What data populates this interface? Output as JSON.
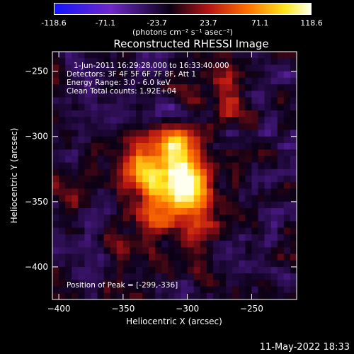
{
  "chart_data": {
    "type": "heatmap",
    "title": "Reconstructed RHESSI Image",
    "xlabel": "Heliocentric X (arcsec)",
    "ylabel": "Heliocentric Y (arcsec)",
    "xlim": [
      -405,
      -215
    ],
    "ylim": [
      -425,
      -235
    ],
    "xticks": [
      -400,
      -350,
      -300,
      -250
    ],
    "yticks": [
      -250,
      -300,
      -350,
      -400
    ],
    "colorbar": {
      "min": -118.6,
      "max": 118.6,
      "ticks": [
        "-118.6",
        "-71.1",
        "-23.7",
        "23.7",
        "71.1",
        "118.6"
      ],
      "units_label": "(photons cm⁻² s⁻¹ asec⁻²)"
    },
    "peak": {
      "x": -299,
      "y": -336,
      "value": 118.6
    },
    "annotations": {
      "time": "1-Jun-2011 16:29:28.000 to 16:33:40.000",
      "detectors": "Detectors: 3F 4F 5F 6F 7F 8F, Att 1",
      "energy": "Energy Range: 3.0 - 6.0 keV",
      "clean": "Clean    Total counts: 1.92E+04",
      "peak_label": "Position of Peak = [-299,-336]"
    },
    "sources": [
      {
        "x": -299,
        "y": -336,
        "amp": 118.6,
        "sx": 12,
        "sy": 14
      },
      {
        "x": -310,
        "y": -305,
        "amp": 92,
        "sx": 10,
        "sy": 9
      },
      {
        "x": -320,
        "y": -330,
        "amp": 70,
        "sx": 18,
        "sy": 20
      },
      {
        "x": -340,
        "y": -325,
        "amp": 45,
        "sx": 14,
        "sy": 10
      },
      {
        "x": -325,
        "y": -360,
        "amp": 38,
        "sx": 12,
        "sy": 15
      },
      {
        "x": -290,
        "y": -375,
        "amp": 30,
        "sx": 10,
        "sy": 18
      },
      {
        "x": -270,
        "y": -265,
        "amp": 42,
        "sx": 8,
        "sy": 18
      },
      {
        "x": -345,
        "y": -390,
        "amp": 25,
        "sx": 10,
        "sy": 14
      }
    ]
  },
  "footer": {
    "date": "11-May-2022 18:33"
  }
}
